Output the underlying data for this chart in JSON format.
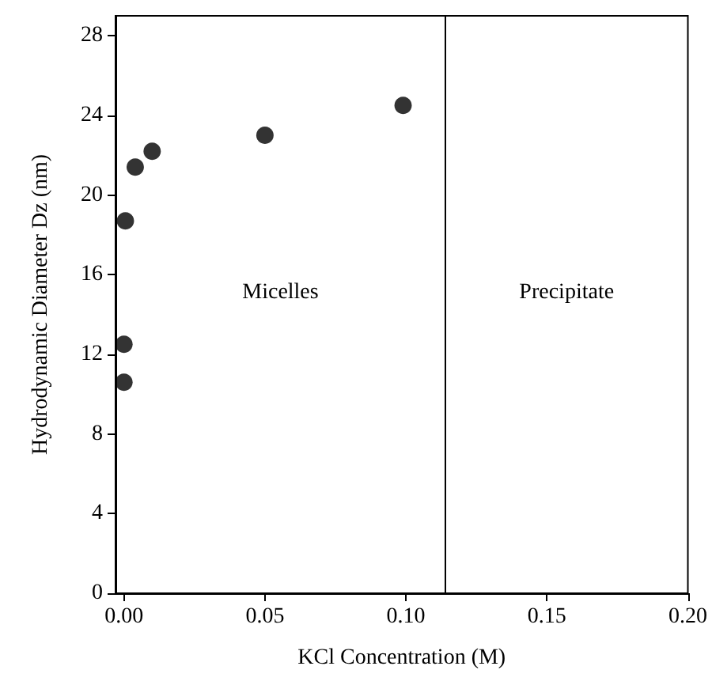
{
  "chart_data": {
    "type": "scatter",
    "xlabel": "KCl Concentration (M)",
    "ylabel": "Hydrodynamic Diameter Dz (nm)",
    "x": [
      0,
      0,
      0.0005,
      0.004,
      0.01,
      0.05,
      0.099
    ],
    "values": [
      10.6,
      12.5,
      18.7,
      21.4,
      22.2,
      23,
      24.5
    ],
    "color": "#000000",
    "marker": "circle",
    "xlim": [
      -0.003,
      0.2
    ],
    "xticks": [
      {
        "value": 0,
        "label": "0.00"
      },
      {
        "value": 0.05,
        "label": "0.05"
      },
      {
        "value": 0.1,
        "label": "0.10"
      },
      {
        "value": 0.15,
        "label": "0.15"
      },
      {
        "value": 0.2,
        "label": "0.20"
      }
    ],
    "ylim": [
      0,
      29
    ],
    "yticks": [
      0,
      4,
      8,
      12,
      16,
      20,
      24,
      28
    ],
    "grid": false,
    "ref_lines": [
      {
        "axis": "x",
        "value": 0.114,
        "color": "#000000",
        "line_style": "solid"
      }
    ],
    "annotations": [
      "Micelles",
      "Precipitate"
    ]
  }
}
